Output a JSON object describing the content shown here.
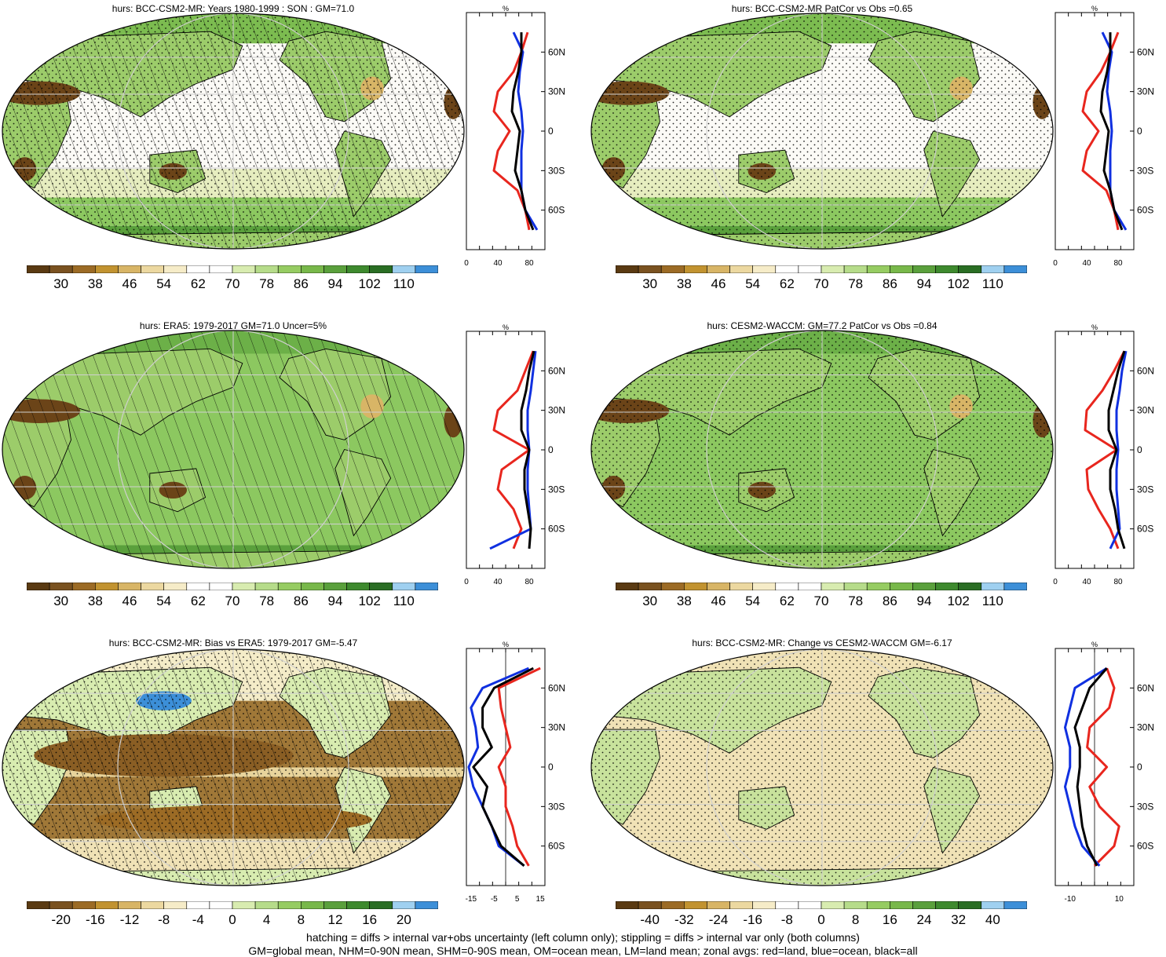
{
  "panels": [
    {
      "id": "p1",
      "title": "hurs: BCC-CSM2-MR: Years 1980-1999 : SON : GM=71.0",
      "colorbar_labels": [
        "30",
        "38",
        "46",
        "54",
        "62",
        "70",
        "78",
        "86",
        "94",
        "102",
        "110"
      ],
      "colorbar_kind": "abs",
      "zonal_xticks": [
        "0",
        "40",
        "80"
      ],
      "zonal_unit": "%",
      "hatching": true,
      "stipple": true,
      "ocean_style": "white"
    },
    {
      "id": "p2",
      "title": "hurs: BCC-CSM2-MR PatCor vs Obs =0.65",
      "colorbar_labels": [
        "30",
        "38",
        "46",
        "54",
        "62",
        "70",
        "78",
        "86",
        "94",
        "102",
        "110"
      ],
      "colorbar_kind": "abs",
      "zonal_xticks": [
        "0",
        "40",
        "80"
      ],
      "zonal_unit": "%",
      "hatching": false,
      "stipple": true,
      "ocean_style": "white"
    },
    {
      "id": "p3",
      "title": "hurs: ERA5: 1979-2017 GM=71.0 Uncer=5%",
      "colorbar_labels": [
        "30",
        "38",
        "46",
        "54",
        "62",
        "70",
        "78",
        "86",
        "94",
        "102",
        "110"
      ],
      "colorbar_kind": "abs",
      "zonal_xticks": [
        "0",
        "40",
        "80"
      ],
      "zonal_unit": "%",
      "hatching": true,
      "stipple": false,
      "ocean_style": "green"
    },
    {
      "id": "p4",
      "title": "hurs: CESM2-WACCM: GM=77.2 PatCor vs Obs =0.84",
      "colorbar_labels": [
        "30",
        "38",
        "46",
        "54",
        "62",
        "70",
        "78",
        "86",
        "94",
        "102",
        "110"
      ],
      "colorbar_kind": "abs",
      "zonal_xticks": [
        "0",
        "40",
        "80"
      ],
      "zonal_unit": "%",
      "hatching": false,
      "stipple": true,
      "ocean_style": "green"
    },
    {
      "id": "p5",
      "title": "hurs: BCC-CSM2-MR: Bias vs ERA5: 1979-2017  GM=-5.47",
      "colorbar_labels": [
        "-20",
        "-16",
        "-12",
        "-8",
        "-4",
        "0",
        "4",
        "8",
        "12",
        "16",
        "20"
      ],
      "colorbar_kind": "diff",
      "zonal_xticks": [
        "-15",
        "-5",
        "5",
        "15"
      ],
      "zonal_unit": "%",
      "hatching": true,
      "stipple": true,
      "ocean_style": "brown"
    },
    {
      "id": "p6",
      "title": "hurs: BCC-CSM2-MR: Change vs CESM2-WACCM GM=-6.17",
      "colorbar_labels": [
        "-40",
        "-32",
        "-24",
        "-16",
        "-8",
        "0",
        "8",
        "16",
        "24",
        "32",
        "40"
      ],
      "colorbar_kind": "diff",
      "zonal_xticks": [
        "-10",
        "10"
      ],
      "zonal_unit": "%",
      "hatching": false,
      "stipple": true,
      "ocean_style": "tan"
    }
  ],
  "lat_labels": [
    "60N",
    "30N",
    "0",
    "30S",
    "60S"
  ],
  "colors": {
    "abs_bar": [
      "#5a3a12",
      "#7a5220",
      "#9c6b25",
      "#c29330",
      "#d8b566",
      "#ecd8a0",
      "#f6ecc8",
      "#ffffff",
      "#ffffff",
      "#d8ecb0",
      "#b6dc8a",
      "#96cc62",
      "#78b84a",
      "#5aa03c",
      "#3e8a2e",
      "#2a6e24",
      "#9fd0f0",
      "#3c8fd8"
    ],
    "diff_bar": [
      "#5a3a12",
      "#7a5220",
      "#9c6b25",
      "#c29330",
      "#d8b566",
      "#ecd8a0",
      "#f6ecc8",
      "#ffffff",
      "#ffffff",
      "#d8ecb0",
      "#b6dc8a",
      "#96cc62",
      "#78b84a",
      "#5aa03c",
      "#3e8a2e",
      "#2a6e24",
      "#9fd0f0",
      "#3c8fd8"
    ],
    "land_line": "#e8261e",
    "ocean_line": "#1030e0",
    "all_line": "#000000"
  },
  "chart_data": [
    {
      "type": "heatmap",
      "title": "hurs: BCC-CSM2-MR: Years 1980-1999 : SON : GM=71.0",
      "xlabel": "",
      "ylabel": "",
      "zonal_profile": {
        "unit": "%",
        "xlim": [
          0,
          100
        ],
        "lat": [
          75,
          60,
          45,
          30,
          15,
          0,
          -15,
          -30,
          -45,
          -60,
          -75
        ],
        "land": [
          78,
          70,
          60,
          40,
          35,
          55,
          40,
          35,
          65,
          75,
          80
        ],
        "ocean": [
          60,
          72,
          68,
          66,
          70,
          72,
          70,
          70,
          70,
          75,
          90
        ],
        "all": [
          70,
          70,
          66,
          60,
          58,
          68,
          65,
          62,
          70,
          75,
          85
        ]
      }
    },
    {
      "type": "heatmap",
      "title": "hurs: BCC-CSM2-MR PatCor vs Obs =0.65",
      "xlabel": "",
      "ylabel": "",
      "zonal_profile": {
        "unit": "%",
        "xlim": [
          0,
          100
        ],
        "lat": [
          75,
          60,
          45,
          30,
          15,
          0,
          -15,
          -30,
          -45,
          -60,
          -75
        ],
        "land": [
          80,
          70,
          58,
          40,
          35,
          55,
          40,
          35,
          65,
          75,
          80
        ],
        "ocean": [
          60,
          72,
          68,
          66,
          70,
          72,
          70,
          70,
          70,
          75,
          90
        ],
        "all": [
          70,
          70,
          66,
          60,
          58,
          68,
          65,
          62,
          70,
          75,
          85
        ]
      }
    },
    {
      "type": "heatmap",
      "title": "hurs: ERA5: 1979-2017 GM=71.0 Uncer=5%",
      "xlabel": "",
      "ylabel": "",
      "zonal_profile": {
        "unit": "%",
        "xlim": [
          0,
          100
        ],
        "lat": [
          75,
          60,
          45,
          30,
          15,
          0,
          -15,
          -30,
          -45,
          -60,
          -75
        ],
        "land": [
          85,
          75,
          65,
          40,
          35,
          80,
          45,
          40,
          60,
          70,
          60
        ],
        "ocean": [
          88,
          85,
          82,
          78,
          78,
          80,
          78,
          78,
          80,
          82,
          30
        ],
        "all": [
          86,
          80,
          76,
          70,
          70,
          80,
          74,
          74,
          78,
          82,
          80
        ]
      }
    },
    {
      "type": "heatmap",
      "title": "hurs: CESM2-WACCM: GM=77.2 PatCor vs Obs =0.84",
      "xlabel": "",
      "ylabel": "",
      "zonal_profile": {
        "unit": "%",
        "xlim": [
          0,
          100
        ],
        "lat": [
          75,
          60,
          45,
          30,
          15,
          0,
          -15,
          -30,
          -45,
          -60,
          -75
        ],
        "land": [
          88,
          75,
          60,
          40,
          38,
          78,
          40,
          42,
          55,
          70,
          80
        ],
        "ocean": [
          90,
          85,
          82,
          78,
          78,
          80,
          78,
          78,
          80,
          82,
          70
        ],
        "all": [
          88,
          80,
          74,
          68,
          68,
          78,
          70,
          70,
          76,
          80,
          88
        ]
      }
    },
    {
      "type": "heatmap",
      "title": "hurs: BCC-CSM2-MR: Bias vs ERA5: 1979-2017  GM=-5.47",
      "xlabel": "",
      "ylabel": "",
      "zonal_profile": {
        "unit": "%",
        "xlim": [
          -17,
          17
        ],
        "lat": [
          75,
          60,
          45,
          30,
          15,
          0,
          -15,
          -30,
          -45,
          -60,
          -75
        ],
        "land": [
          15,
          -3,
          -2,
          0,
          2,
          -3,
          0,
          0,
          3,
          5,
          10
        ],
        "ocean": [
          10,
          -10,
          -15,
          -13,
          -12,
          -16,
          -14,
          -10,
          -6,
          -3,
          8
        ],
        "all": [
          12,
          -5,
          -10,
          -10,
          -6,
          -14,
          -8,
          -10,
          -6,
          -2,
          8
        ]
      }
    },
    {
      "type": "heatmap",
      "title": "hurs: BCC-CSM2-MR: Change vs CESM2-WACCM GM=-6.17",
      "xlabel": "",
      "ylabel": "",
      "zonal_profile": {
        "unit": "%",
        "xlim": [
          -16,
          16
        ],
        "lat": [
          75,
          60,
          45,
          30,
          15,
          0,
          -15,
          -30,
          -45,
          -60,
          -75
        ],
        "land": [
          5,
          8,
          6,
          -2,
          -3,
          5,
          -2,
          2,
          10,
          8,
          0
        ],
        "ocean": [
          5,
          -8,
          -10,
          -12,
          -10,
          -10,
          -12,
          -10,
          -8,
          -5,
          2
        ],
        "all": [
          5,
          -2,
          -5,
          -8,
          -6,
          -6,
          -7,
          -6,
          -5,
          -3,
          1
        ]
      }
    }
  ],
  "footer": {
    "line1": "hatching = diffs > internal var+obs uncertainty (left column only); stippling = diffs > internal var only (both columns)",
    "line2": "GM=global mean, NHM=0-90N mean, SHM=0-90S mean, OM=ocean mean, LM=land mean; zonal avgs: red=land, blue=ocean, black=all"
  }
}
